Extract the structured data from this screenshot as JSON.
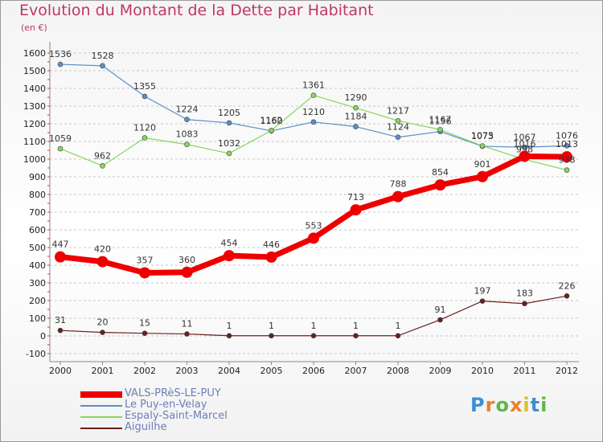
{
  "chart_data": {
    "type": "line",
    "title": "Evolution du Montant de la Dette par Habitant",
    "subtitle": "(en €)",
    "categories": [
      "2000",
      "2001",
      "2002",
      "2003",
      "2004",
      "2005",
      "2006",
      "2007",
      "2008",
      "2009",
      "2010",
      "2011",
      "2012"
    ],
    "y_ticks": [
      "-100",
      "0",
      "100",
      "200",
      "300",
      "400",
      "500",
      "600",
      "700",
      "800",
      "900",
      "1000",
      "1100",
      "1200",
      "1300",
      "1400",
      "1500",
      "1600"
    ],
    "ylim": [
      -100,
      1600
    ],
    "grid": "horizontal dashed",
    "legend_placement": "bottom-left",
    "series": [
      {
        "name": "VALS-PRèS-LE-PUY",
        "color": "#ee0000",
        "values": [
          447,
          420,
          357,
          360,
          454,
          446,
          553,
          713,
          788,
          854,
          901,
          1016,
          1013
        ],
        "labels": [
          "447",
          "420",
          "357",
          "360",
          "454",
          "446",
          "553",
          "713",
          "788",
          "854",
          "901",
          "1016",
          "1013"
        ]
      },
      {
        "name": "Le Puy-en-Velay",
        "color": "#5b8fc9",
        "values": [
          1536,
          1528,
          1355,
          1224,
          1205,
          1160,
          1210,
          1184,
          1124,
          1156,
          1073,
          1067,
          1076
        ],
        "labels": [
          "1536",
          "1528",
          "1355",
          "1224",
          "1205",
          "1160",
          "1210",
          "1184",
          "1124",
          "1156",
          "1073",
          "1067",
          "1076"
        ]
      },
      {
        "name": "Espaly-Saint-Marcel",
        "color": "#88d65a",
        "values": [
          1059,
          962,
          1120,
          1083,
          1032,
          1162,
          1361,
          1290,
          1217,
          1167,
          1075,
          998,
          938
        ],
        "labels": [
          "1059",
          "962",
          "1120",
          "1083",
          "1032",
          "1162",
          "1361",
          "1290",
          "1217",
          "1167",
          "1075",
          "998",
          "938"
        ]
      },
      {
        "name": "Aiguilhe",
        "color": "#6b1f1f",
        "values": [
          31,
          20,
          15,
          11,
          1,
          1,
          1,
          1,
          1,
          91,
          197,
          183,
          226
        ],
        "labels": [
          "31",
          "20",
          "15",
          "11",
          "1",
          "1",
          "1",
          "1",
          "1",
          "91",
          "197",
          "183",
          "226"
        ]
      }
    ],
    "logo_text": "Proxiti"
  }
}
